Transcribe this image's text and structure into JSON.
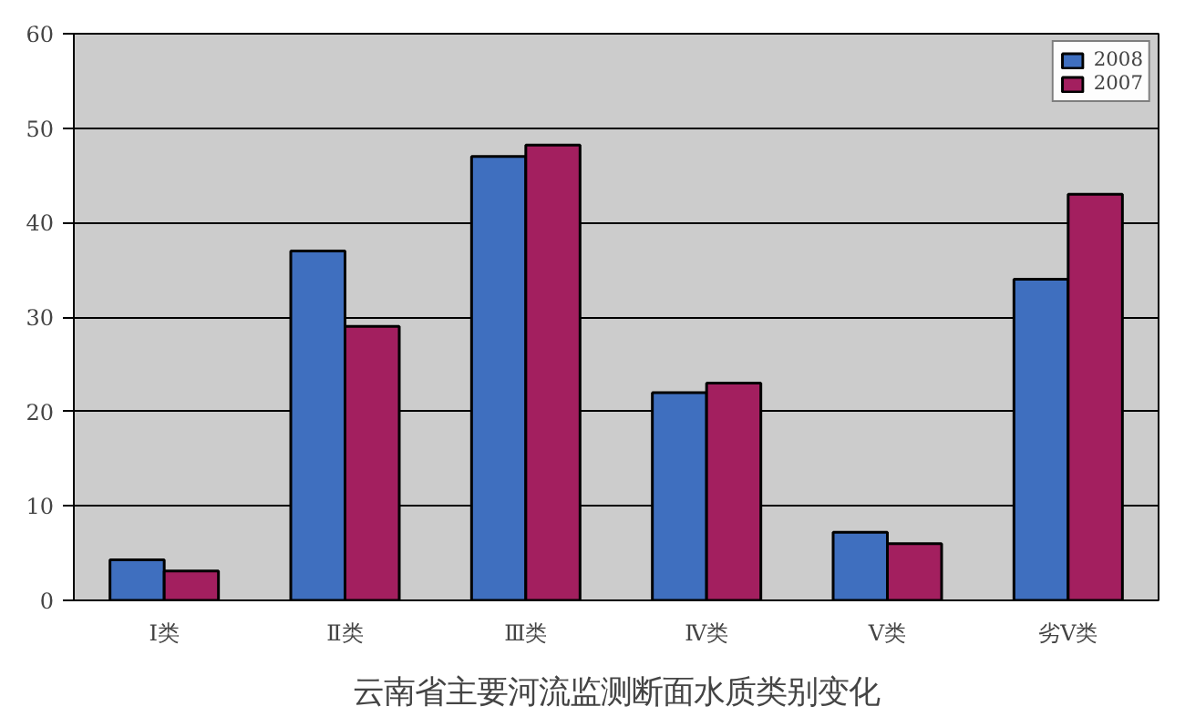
{
  "chart_data": {
    "type": "bar",
    "title": "云南省主要河流监测断面水质类别变化",
    "categories": [
      "Ⅰ类",
      "Ⅱ类",
      "Ⅲ类",
      "Ⅳ类",
      "Ⅴ类",
      "劣Ⅴ类"
    ],
    "series": [
      {
        "name": "2008",
        "color": "#3f6fbf",
        "values": [
          4.3,
          37,
          47,
          22,
          7.2,
          34
        ]
      },
      {
        "name": "2007",
        "color": "#a31f5f",
        "values": [
          3.1,
          29,
          48.2,
          23,
          6,
          43
        ]
      }
    ],
    "ylim": [
      0,
      60
    ],
    "yticks": [
      0,
      10,
      20,
      30,
      40,
      50,
      60
    ],
    "grid": "y",
    "legend": "top right"
  }
}
